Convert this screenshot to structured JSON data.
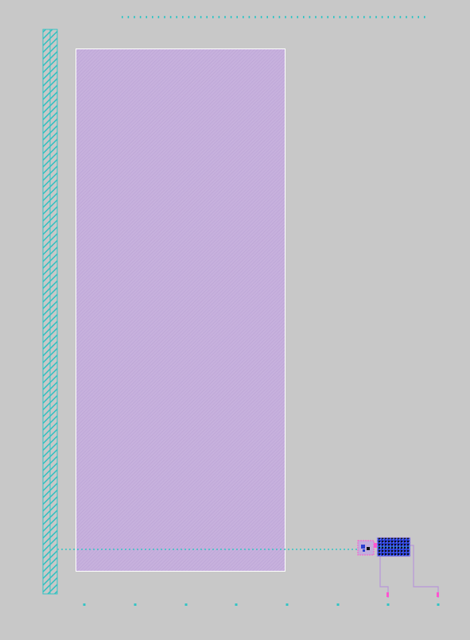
{
  "colors": {
    "background": "#c8c8c8",
    "cyan": "#33c4c4",
    "lavender": "#c3aedb",
    "border": "#ffffff",
    "magenta": "#ff55d0",
    "blue": "#2b3fd0",
    "black": "#101010"
  },
  "labels": []
}
